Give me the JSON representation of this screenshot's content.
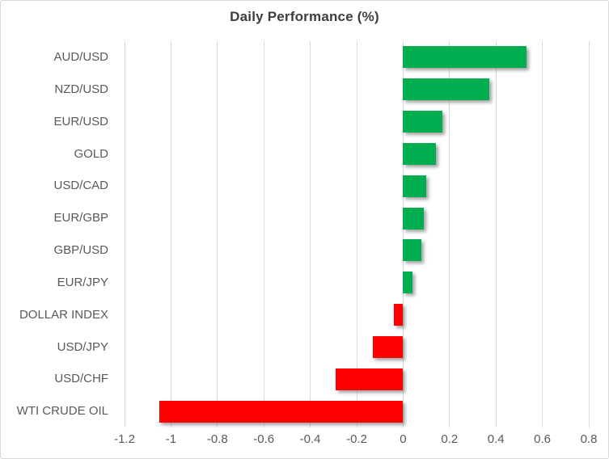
{
  "chart_data": {
    "type": "bar",
    "orientation": "horizontal",
    "title": "Daily Performance (%)",
    "categories": [
      "AUD/USD",
      "NZD/USD",
      "EUR/USD",
      "GOLD",
      "USD/CAD",
      "EUR/GBP",
      "GBP/USD",
      "EUR/JPY",
      "DOLLAR INDEX",
      "USD/JPY",
      "USD/CHF",
      "WTI CRUDE OIL"
    ],
    "values": [
      0.53,
      0.37,
      0.17,
      0.14,
      0.1,
      0.09,
      0.08,
      0.04,
      -0.04,
      -0.13,
      -0.29,
      -1.05
    ],
    "xlabel": "",
    "ylabel": "",
    "xlim": [
      -1.2,
      0.8
    ],
    "x_ticks": [
      -1.2,
      -1,
      -0.8,
      -0.6,
      -0.4,
      -0.2,
      0,
      0.2,
      0.4,
      0.6,
      0.8
    ],
    "x_tick_labels": [
      "-1.2",
      "-1",
      "-0.8",
      "-0.6",
      "-0.4",
      "-0.2",
      "0",
      "0.2",
      "0.4",
      "0.6",
      "0.8"
    ],
    "grid": "vertical",
    "legend": "none",
    "colors": {
      "positive": "#00ae50",
      "negative": "#ff0000",
      "gridline": "#d9d9d9",
      "title_text": "#3d3d3d",
      "axis_text": "#595959"
    }
  }
}
